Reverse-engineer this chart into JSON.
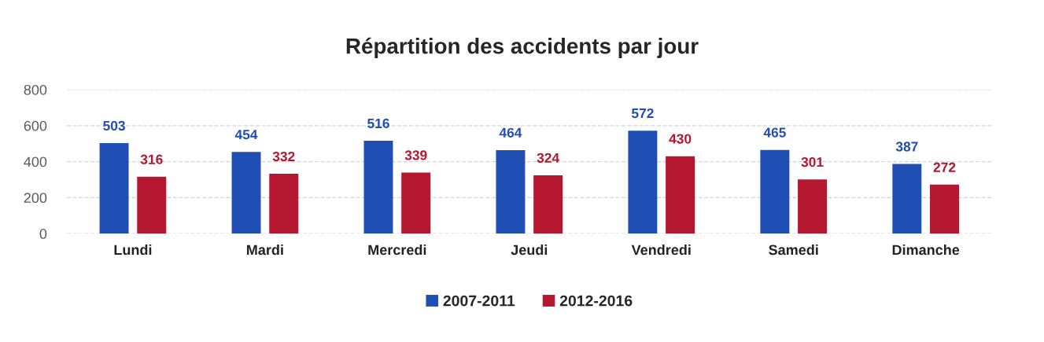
{
  "chart_data": {
    "type": "bar",
    "title": "Répartition des accidents par jour",
    "categories": [
      "Lundi",
      "Mardi",
      "Mercredi",
      "Jeudi",
      "Vendredi",
      "Samedi",
      "Dimanche"
    ],
    "series": [
      {
        "name": "2007-2011",
        "color": "#1f4eb4",
        "values": [
          503,
          454,
          516,
          464,
          572,
          465,
          387
        ]
      },
      {
        "name": "2012-2016",
        "color": "#b4172f",
        "values": [
          316,
          332,
          339,
          324,
          430,
          301,
          272
        ]
      }
    ],
    "ylim": [
      0,
      800
    ],
    "yticks": [
      0,
      200,
      400,
      600,
      800
    ],
    "grid": "y",
    "legend": "bottom",
    "data_labels": true
  }
}
